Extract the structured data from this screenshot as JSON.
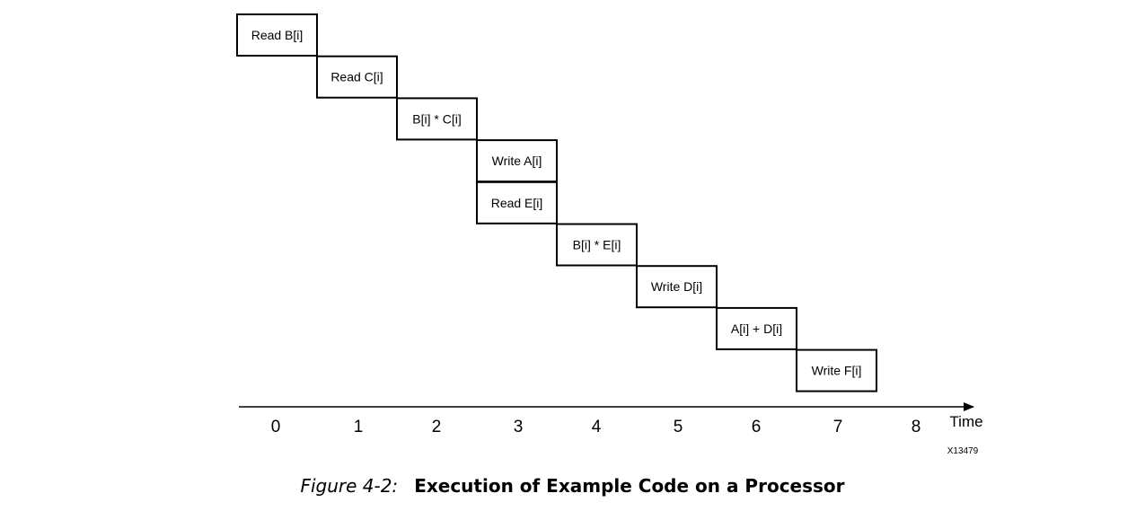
{
  "diagram": {
    "operations": [
      {
        "label": "Read B[i]",
        "step": 0,
        "row": 0
      },
      {
        "label": "Read C[i]",
        "step": 1,
        "row": 1
      },
      {
        "label": "B[i] * C[i]",
        "step": 2,
        "row": 2
      },
      {
        "label": "Write A[i]",
        "step": 3,
        "row": 3
      },
      {
        "label": "Read E[i]",
        "step": 3,
        "row": 4
      },
      {
        "label": "B[i] * E[i]",
        "step": 4,
        "row": 5
      },
      {
        "label": "Write D[i]",
        "step": 5,
        "row": 6
      },
      {
        "label": "A[i] + D[i]",
        "step": 6,
        "row": 7
      },
      {
        "label": "Write F[i]",
        "step": 7,
        "row": 8
      }
    ],
    "ticks": [
      "0",
      "1",
      "2",
      "3",
      "4",
      "5",
      "6",
      "7",
      "8"
    ],
    "axis_title": "Time",
    "figure_id": "X13479"
  },
  "caption": {
    "number": "Figure 4-2:",
    "title": "Execution of Example Code on a Processor"
  }
}
